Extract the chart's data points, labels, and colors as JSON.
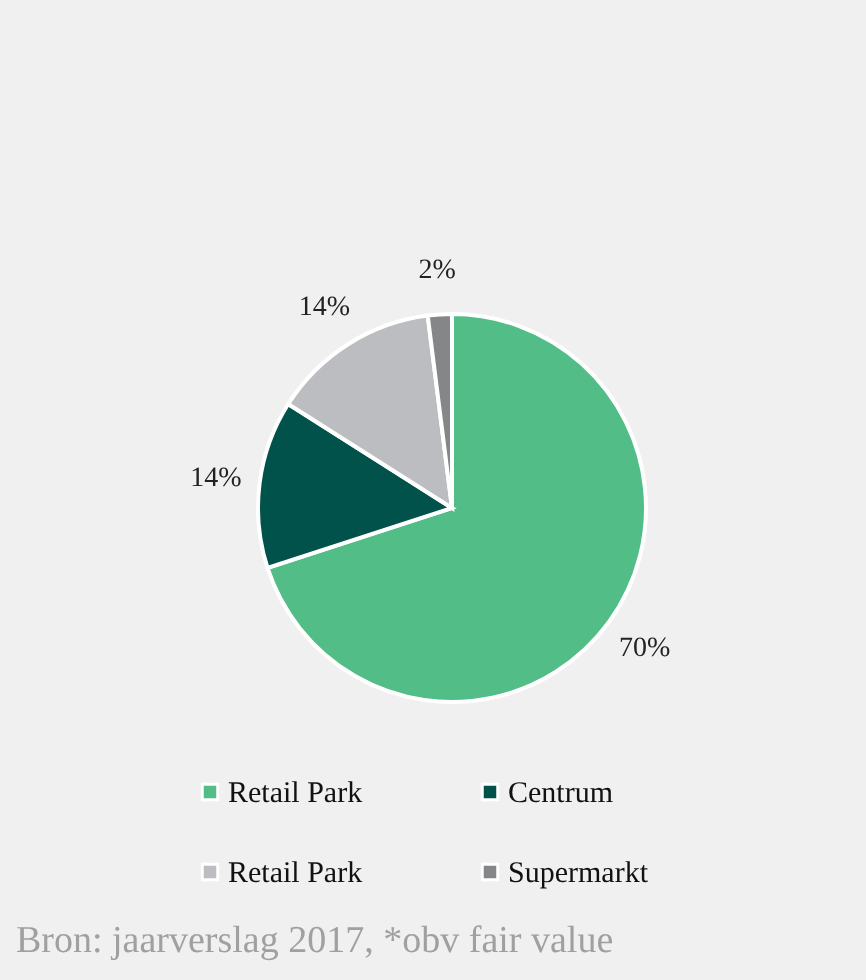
{
  "chart_data": {
    "type": "pie",
    "categories": [
      "Retail Park",
      "Centrum",
      "Retail Park",
      "Supermarkt"
    ],
    "values": [
      70,
      14,
      14,
      2
    ],
    "colors": [
      "#52bd86",
      "#00524a",
      "#bcbdc0",
      "#858688"
    ],
    "value_labels": [
      "70%",
      "14%",
      "14%",
      "2%"
    ],
    "legend": "bottom",
    "annotations": [
      "Bron: jaarverslag 2017, *obv fair value"
    ]
  }
}
